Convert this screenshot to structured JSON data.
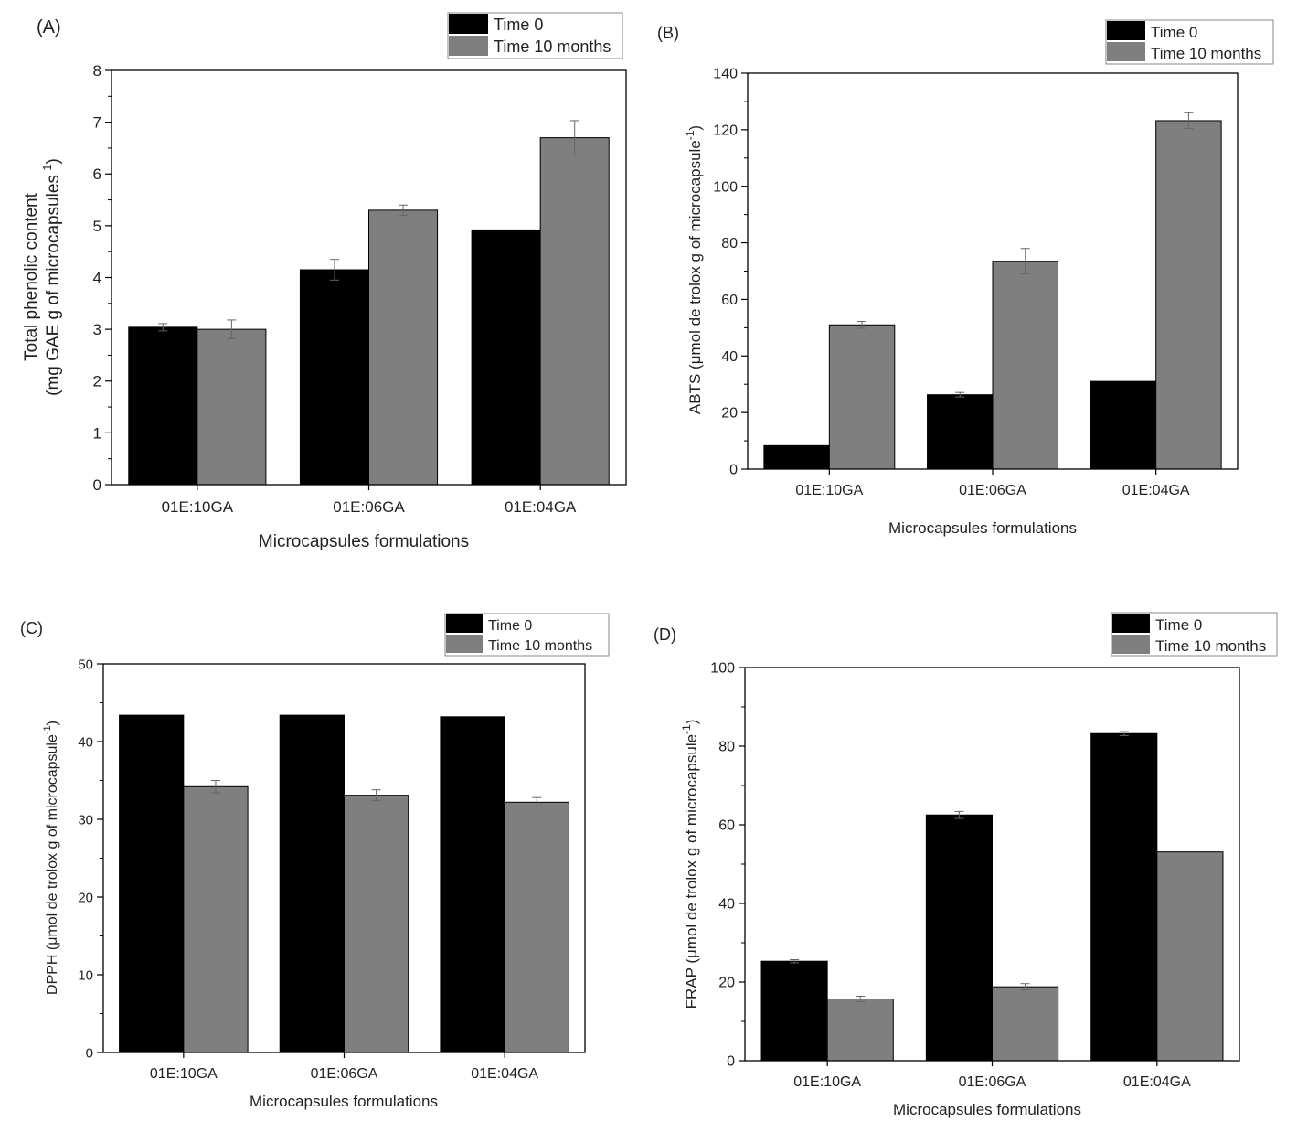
{
  "colors": {
    "series": [
      "#000000",
      "#7f7f7f"
    ],
    "axis": "#000000",
    "error_bar": "#666666"
  },
  "chart_data": [
    {
      "panel": "(A)",
      "type": "bar",
      "categories": [
        "01E:10GA",
        "01E:06GA",
        "01E:04GA"
      ],
      "series": [
        {
          "name": "Time 0",
          "values": [
            3.04,
            4.15,
            4.92
          ],
          "errors": [
            0.07,
            0.2,
            0
          ]
        },
        {
          "name": "Time 10 months",
          "values": [
            3.0,
            5.3,
            6.7
          ],
          "errors": [
            0.18,
            0.1,
            0.33
          ]
        }
      ],
      "xlabel": "Microcapsules formulations",
      "ylabel_line1": "Total phenolic content",
      "ylabel_line2": "(mg GAE g of microcapsules",
      "ylabel_sup": "-1",
      "ylabel_tail": ")",
      "ylim": [
        0,
        8
      ],
      "yticks": [
        0,
        1,
        2,
        3,
        4,
        5,
        6,
        7,
        8
      ],
      "legend_position": "top-right",
      "grid": false
    },
    {
      "panel": "(B)",
      "type": "bar",
      "categories": [
        "01E:10GA",
        "01E:06GA",
        "01E:04GA"
      ],
      "series": [
        {
          "name": "Time 0",
          "values": [
            8.3,
            26.3,
            31.0
          ],
          "errors": [
            0,
            0.8,
            0
          ]
        },
        {
          "name": "Time 10 months",
          "values": [
            51.0,
            73.5,
            123.2
          ],
          "errors": [
            1.2,
            4.5,
            2.8
          ]
        }
      ],
      "xlabel": "Microcapsules formulations",
      "ylabel_line1": "ABTS (μmol de trolox g of microcapsule",
      "ylabel_sup": "-1",
      "ylabel_tail": ")",
      "ylim": [
        0,
        140
      ],
      "yticks": [
        0,
        20,
        40,
        60,
        80,
        100,
        120,
        140
      ],
      "legend_position": "top-right",
      "grid": false
    },
    {
      "panel": "(C)",
      "type": "bar",
      "categories": [
        "01E:10GA",
        "01E:06GA",
        "01E:04GA"
      ],
      "series": [
        {
          "name": "Time 0",
          "values": [
            43.4,
            43.4,
            43.2
          ],
          "errors": [
            0,
            0,
            0
          ]
        },
        {
          "name": "Time 10 months",
          "values": [
            34.2,
            33.1,
            32.2
          ],
          "errors": [
            0.8,
            0.7,
            0.6
          ]
        }
      ],
      "xlabel": "Microcapsules formulations",
      "ylabel_line1": "DPPH (μmol de trolox g of microcapsule",
      "ylabel_sup": "-1",
      "ylabel_tail": ")",
      "ylim": [
        0,
        50
      ],
      "yticks": [
        0,
        10,
        20,
        30,
        40,
        50
      ],
      "legend_position": "top-right",
      "grid": false
    },
    {
      "panel": "(D)",
      "type": "bar",
      "categories": [
        "01E:10GA",
        "01E:06GA",
        "01E:04GA"
      ],
      "series": [
        {
          "name": "Time 0",
          "values": [
            25.3,
            62.5,
            83.2
          ],
          "errors": [
            0.4,
            0.9,
            0.5
          ]
        },
        {
          "name": "Time 10 months",
          "values": [
            15.7,
            18.8,
            53.1
          ],
          "errors": [
            0.7,
            0.8,
            0
          ]
        }
      ],
      "xlabel": "Microcapsules formulations",
      "ylabel_line1": "FRAP (μmol de trolox g of microcapsule",
      "ylabel_sup": "-1",
      "ylabel_tail": ")",
      "ylim": [
        0,
        100
      ],
      "yticks": [
        0,
        20,
        40,
        60,
        80,
        100
      ],
      "legend_position": "top-right",
      "grid": false
    }
  ]
}
